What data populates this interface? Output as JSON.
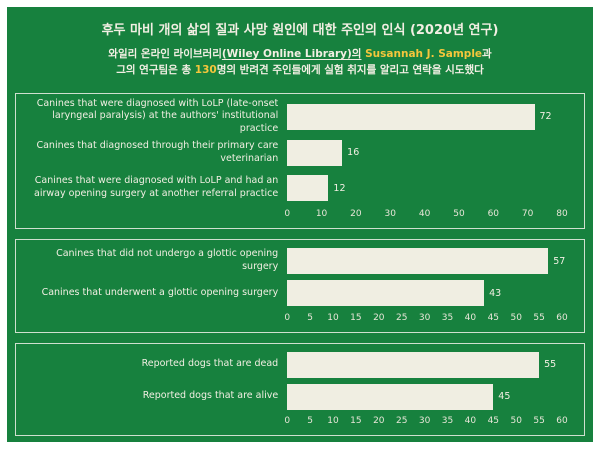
{
  "colors": {
    "background": "#17813e",
    "frame": "#ffffff",
    "bar": "#f0eee2",
    "text": "#f2efe3",
    "accent": "#f5c63c",
    "panel_border": "#cfe0cf"
  },
  "header": {
    "title": "후두 마비 개의 삶의 질과 사망 원인에 대한 주인의 인식 (2020년 연구)",
    "line2": {
      "normal1": "와일리 온라인 라이브러리",
      "underlined": "(Wiley Online Library)의",
      "highlight": " Susannah J. Sample",
      "normal2": "과"
    },
    "line3": {
      "normal1": "그의 연구팀은 총 ",
      "highlight": "130",
      "normal2": "명의 반려견 주인들에게 실험 취지를 알리고 연락을 시도했다"
    }
  },
  "chart_data": [
    {
      "type": "bar",
      "orientation": "horizontal",
      "title": "",
      "categories": [
        "Canines that were diagnosed with LoLP (late-onset laryngeal paralysis) at the authors' institutional practice",
        "Canines that diagnosed through their primary care veterinarian",
        "Canines that were diagnosed with LoLP and had an airway opening surgery at another referral practice"
      ],
      "values": [
        72,
        16,
        12
      ],
      "xlim": [
        0,
        80
      ],
      "xticks": [
        0,
        10,
        20,
        30,
        40,
        50,
        60,
        70,
        80
      ],
      "value_labels": true,
      "grid": false,
      "legend": false,
      "bar_color": "#f0eee2"
    },
    {
      "type": "bar",
      "orientation": "horizontal",
      "title": "",
      "categories": [
        "Canines that did not undergo a glottic opening surgery",
        "Canines that underwent a glottic opening surgery"
      ],
      "values": [
        57,
        43
      ],
      "xlim": [
        0,
        60
      ],
      "xticks": [
        0,
        5,
        10,
        15,
        20,
        25,
        30,
        35,
        40,
        45,
        50,
        55,
        60
      ],
      "value_labels": true,
      "grid": false,
      "legend": false,
      "bar_color": "#f0eee2"
    },
    {
      "type": "bar",
      "orientation": "horizontal",
      "title": "",
      "categories": [
        "Reported dogs that are dead",
        "Reported dogs that are alive"
      ],
      "values": [
        55,
        45
      ],
      "xlim": [
        0,
        60
      ],
      "xticks": [
        0,
        5,
        10,
        15,
        20,
        25,
        30,
        35,
        40,
        45,
        50,
        55,
        60
      ],
      "value_labels": true,
      "grid": false,
      "legend": false,
      "bar_color": "#f0eee2"
    }
  ]
}
